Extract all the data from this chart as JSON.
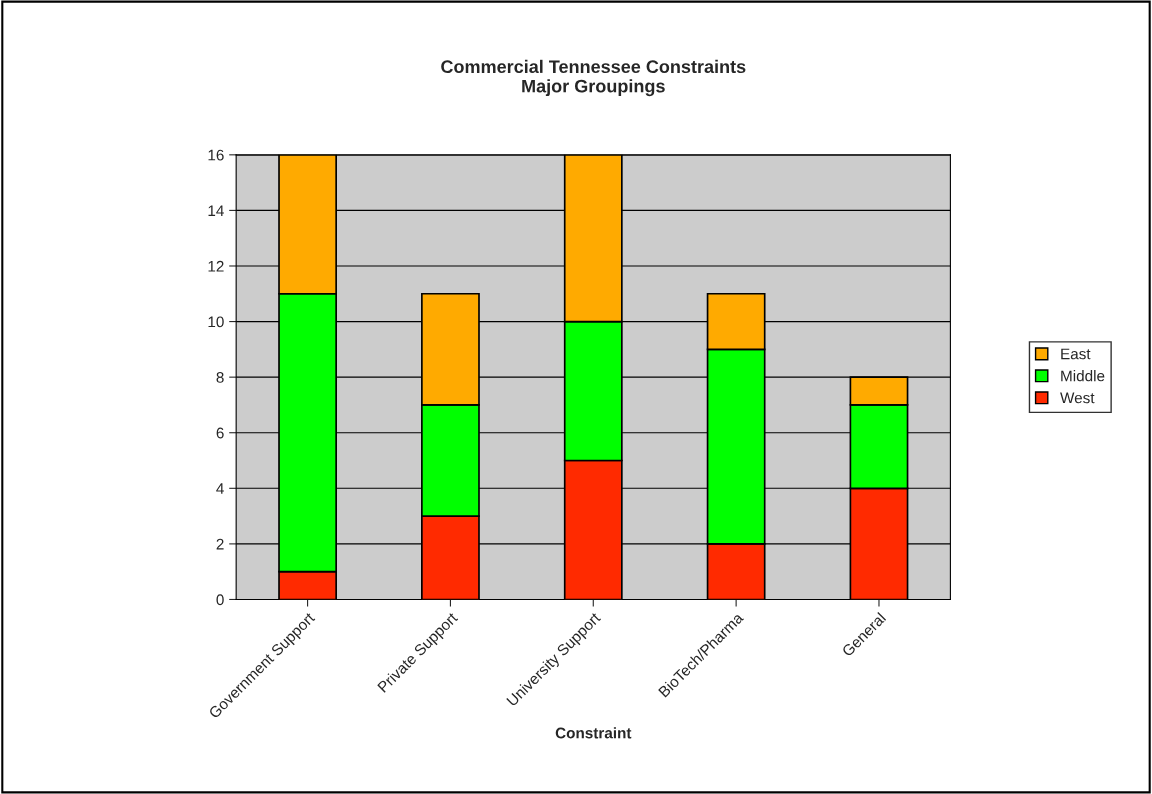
{
  "chart_data": {
    "type": "bar",
    "title": "Commercial Tennessee Constraints\nMajor Groupings",
    "xlabel": "Constraint",
    "categories": [
      "Government Support",
      "Private Support",
      "University Support",
      "BioTech/Pharma",
      "General"
    ],
    "stacked": true,
    "series": [
      {
        "name": "West",
        "color": "#ff2a00",
        "values": [
          1,
          3,
          5,
          2,
          4
        ]
      },
      {
        "name": "Middle",
        "color": "#00ff00",
        "values": [
          10,
          4,
          5,
          7,
          3
        ]
      },
      {
        "name": "East",
        "color": "#ffaa00",
        "values": [
          5,
          4,
          6,
          2,
          1
        ]
      }
    ],
    "ylim": [
      0,
      16
    ],
    "yticks": [
      0,
      2,
      4,
      6,
      8,
      10,
      12,
      14,
      16
    ],
    "grid": "y",
    "legend": "right"
  }
}
